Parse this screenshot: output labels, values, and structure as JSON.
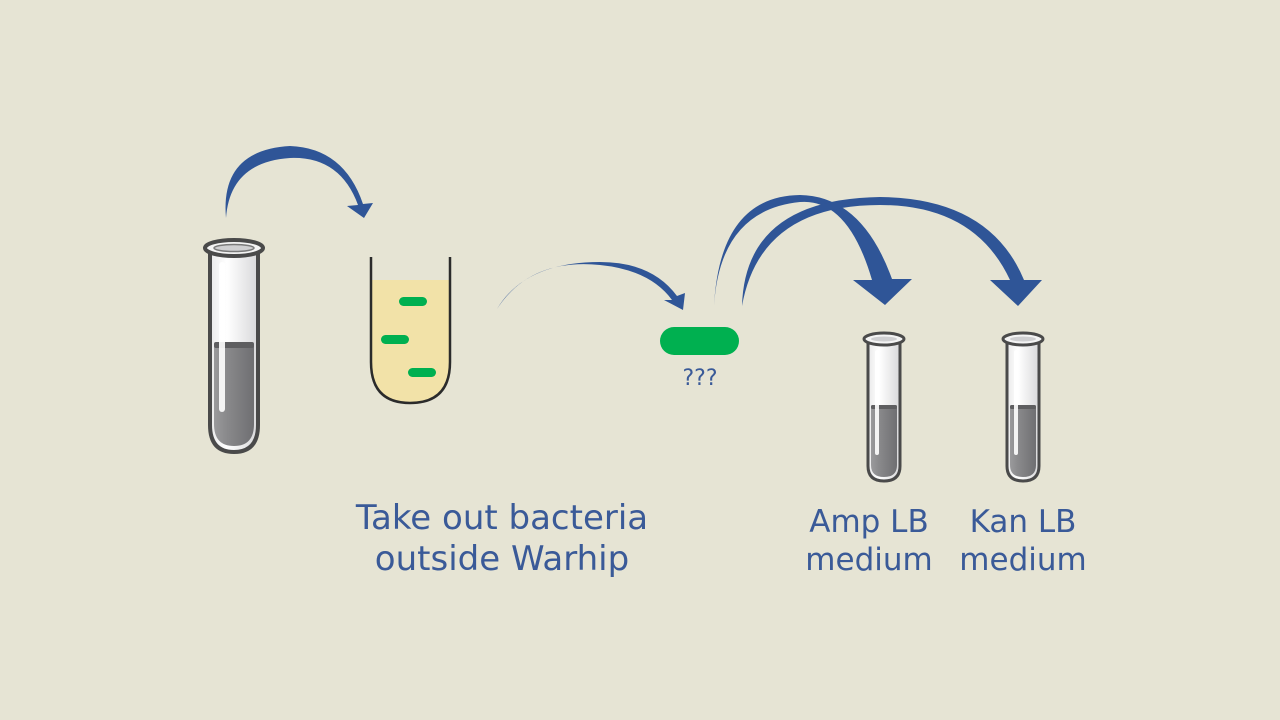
{
  "diagram": {
    "labels": {
      "take_out_line1": "Take out bacteria",
      "take_out_line2": "outside Warhip",
      "unknown": "???",
      "amp_line1": "Amp LB",
      "amp_line2": "medium",
      "kan_line1": "Kan LB",
      "kan_line2": "medium"
    },
    "colors": {
      "background": "#e6e4d4",
      "arrow": "#2f5597",
      "bacteria": "#00b050",
      "culture_medium": "#f2e2a8",
      "tube_liquid": "#888888",
      "tube_outline": "#444444",
      "label_text": "#3a5a98"
    },
    "icons": [
      "test-tube-icon",
      "culture-tube-icon",
      "bacterium-icon",
      "curved-arrow-icon"
    ]
  }
}
